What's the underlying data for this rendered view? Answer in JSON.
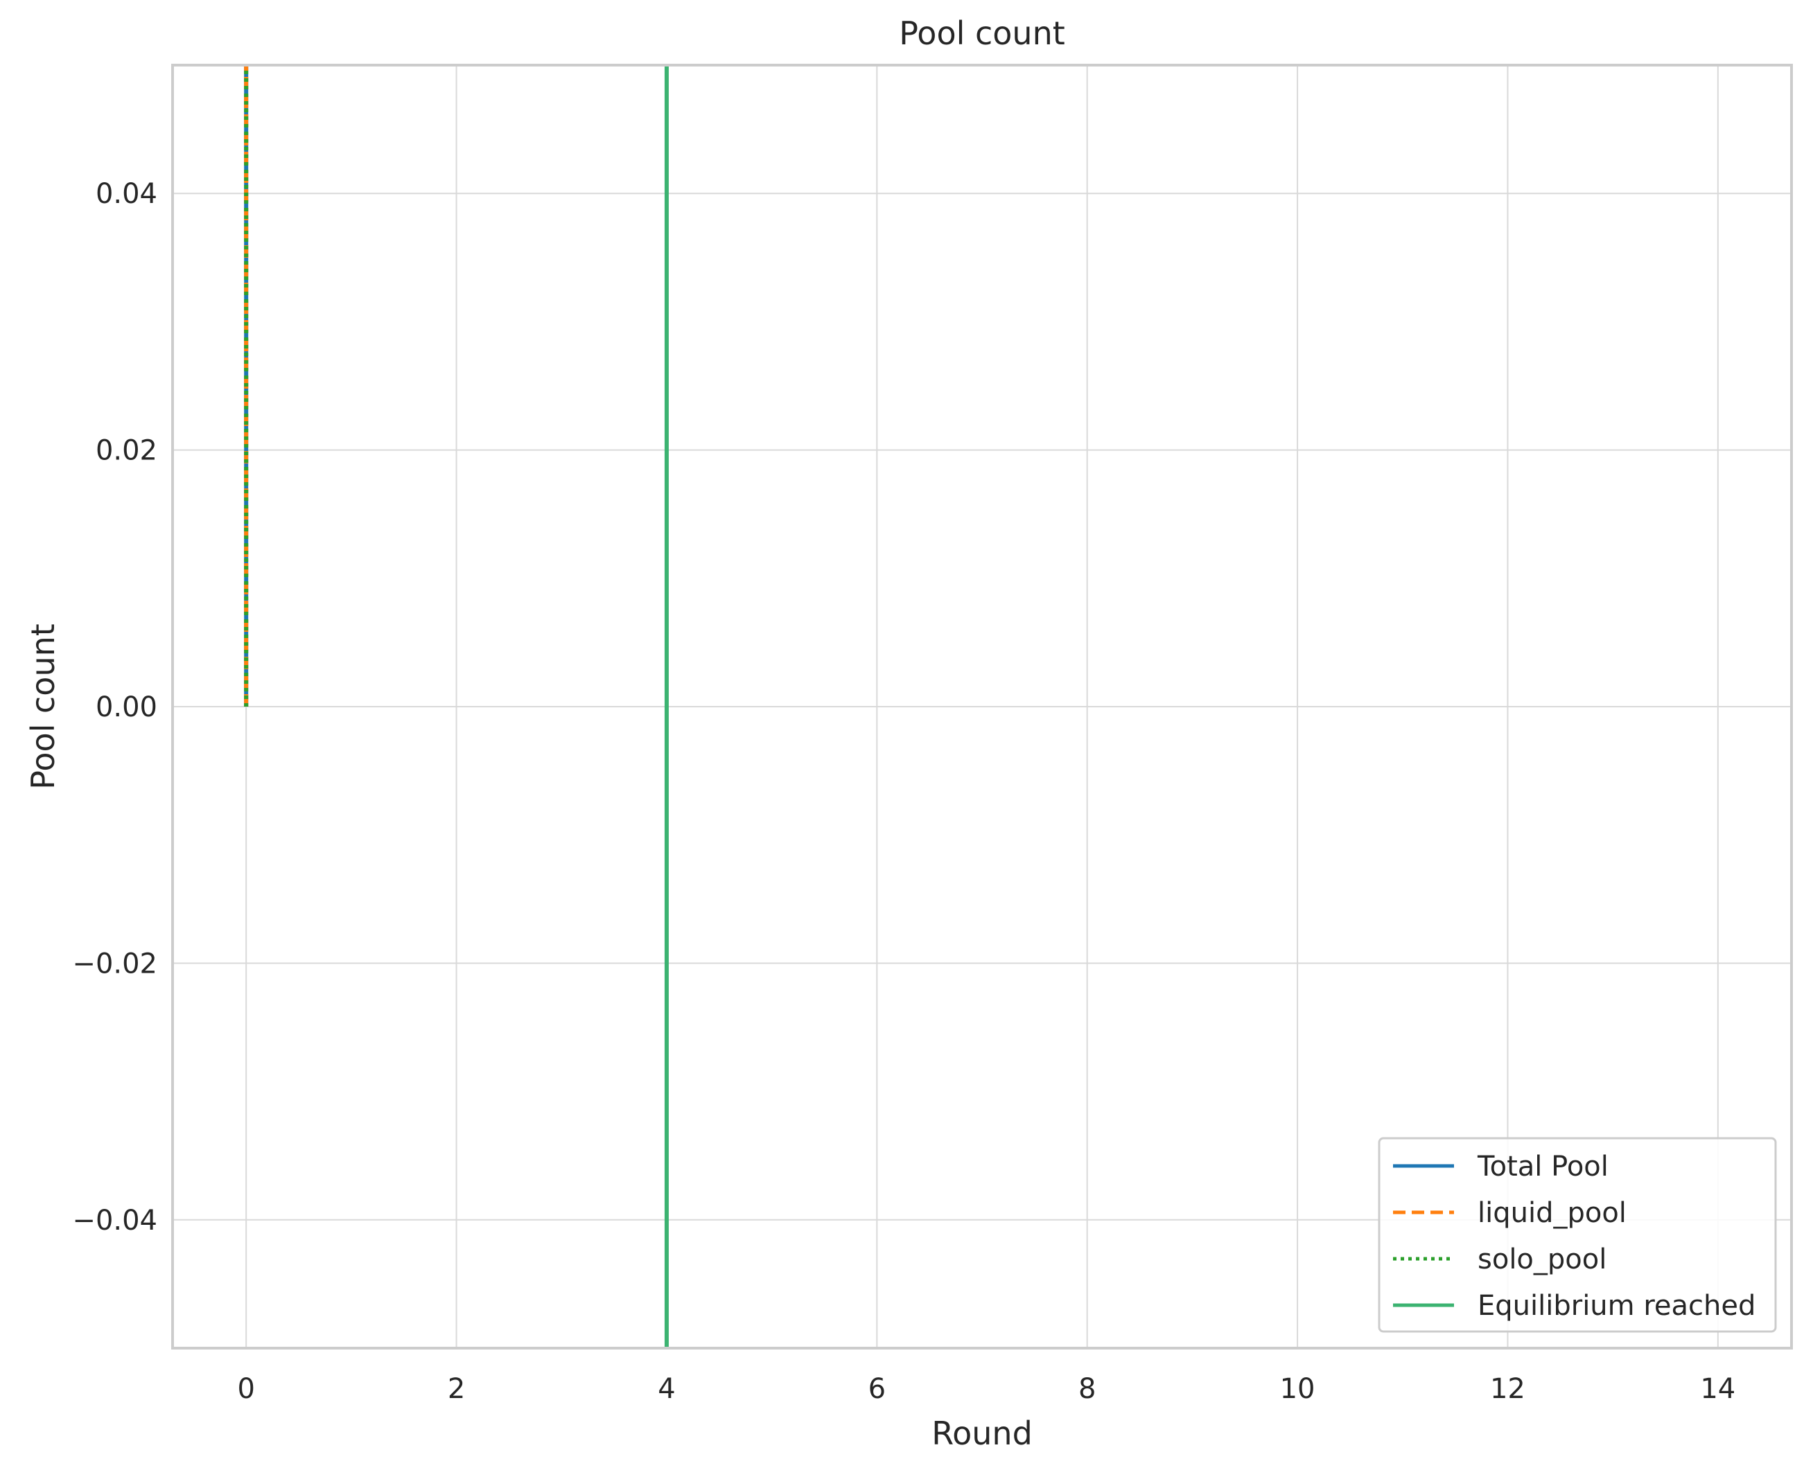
{
  "chart_data": {
    "type": "line",
    "title": "Pool count",
    "xlabel": "Round",
    "ylabel": "Pool count",
    "xlim": [
      -0.7,
      14.7
    ],
    "ylim": [
      -0.05,
      0.05
    ],
    "xticks": [
      0,
      2,
      4,
      6,
      8,
      10,
      12,
      14
    ],
    "xtick_labels": [
      "0",
      "2",
      "4",
      "6",
      "8",
      "10",
      "12",
      "14"
    ],
    "yticks": [
      -0.04,
      -0.02,
      0.0,
      0.02,
      0.04
    ],
    "ytick_labels": [
      "−0.04",
      "−0.02",
      "0.00",
      "0.02",
      "0.04"
    ],
    "grid": true,
    "legend_position": "lower-right",
    "series": [
      {
        "name": "Total Pool",
        "style": "solid",
        "color": "#1f77b4",
        "x": [
          0,
          0
        ],
        "y": [
          0,
          0.05
        ]
      },
      {
        "name": "liquid_pool",
        "style": "dashed",
        "color": "#ff7f0e",
        "x": [
          0,
          0
        ],
        "y": [
          0,
          0.05
        ]
      },
      {
        "name": "solo_pool",
        "style": "dotted",
        "color": "#2ca02c",
        "x": [
          0,
          0
        ],
        "y": [
          0,
          0.05
        ]
      }
    ],
    "vlines": [
      {
        "name": "Equilibrium reached",
        "x": 4,
        "style": "solid",
        "color": "#3cb371"
      }
    ],
    "legend": [
      "Total Pool",
      "liquid_pool",
      "solo_pool",
      "Equilibrium reached"
    ]
  }
}
